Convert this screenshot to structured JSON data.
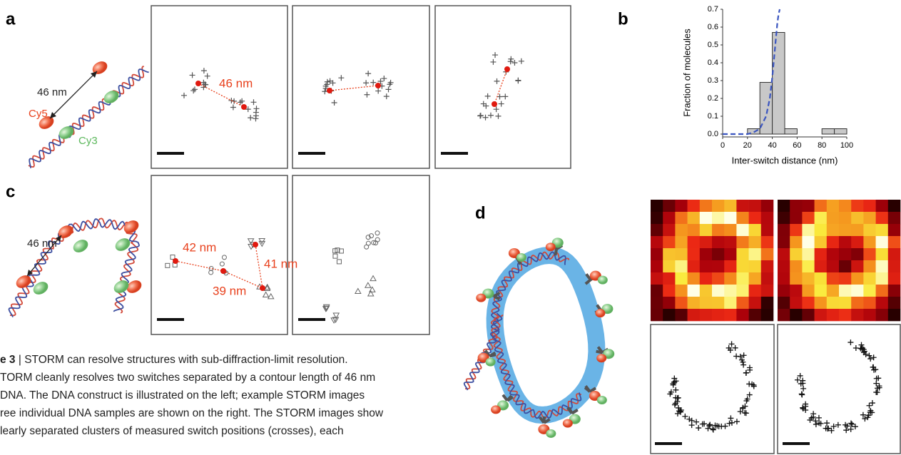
{
  "panel_a": {
    "label": "a",
    "distance": "46 nm",
    "dye_red": "Cy5",
    "dye_green": "Cy3",
    "measured": "46 nm"
  },
  "panel_b": {
    "label": "b"
  },
  "panel_c": {
    "label": "c",
    "distance": "46 nm",
    "measured": [
      "42 nm",
      "41 nm",
      "39 nm"
    ]
  },
  "panel_d": {
    "label": "d"
  },
  "caption": {
    "figure": "e 3",
    "lines": [
      " | STORM can resolve structures with sub-diffraction-limit resolution.",
      "TORM cleanly resolves two switches separated by a contour length of 46 nm",
      "DNA. The DNA construct is illustrated on the left; example STORM images",
      "ree individual DNA samples are shown on the right. The STORM images show",
      "learly separated clusters of measured switch positions (crosses), each"
    ]
  },
  "chart_data": {
    "type": "histogram",
    "x_label": "Inter-switch distance (nm)",
    "y_label": "Fraction of molecules",
    "bins": [
      0,
      10,
      20,
      30,
      40,
      50,
      60,
      70,
      80,
      90,
      100
    ],
    "values": [
      0,
      0,
      0.03,
      0.29,
      0.57,
      0.03,
      0,
      0,
      0.03,
      0.03
    ],
    "color": "#c8c8c8",
    "fit_line": {
      "color": "#3a55c0",
      "x": [
        0,
        20,
        25,
        30,
        35,
        38,
        40,
        42,
        44,
        45,
        46
      ],
      "values": [
        0,
        0,
        0.01,
        0.03,
        0.1,
        0.2,
        0.32,
        0.47,
        0.62,
        0.67,
        0.7
      ]
    },
    "xlim": [
      0,
      100
    ],
    "ylim": [
      0,
      0.7
    ],
    "xticks": [
      0,
      20,
      40,
      60,
      80,
      100
    ],
    "yticks": [
      {
        "value": 0,
        "label": "0.0"
      },
      0.1,
      0.2,
      0.3,
      0.4,
      0.5,
      0.6,
      0.7
    ]
  }
}
